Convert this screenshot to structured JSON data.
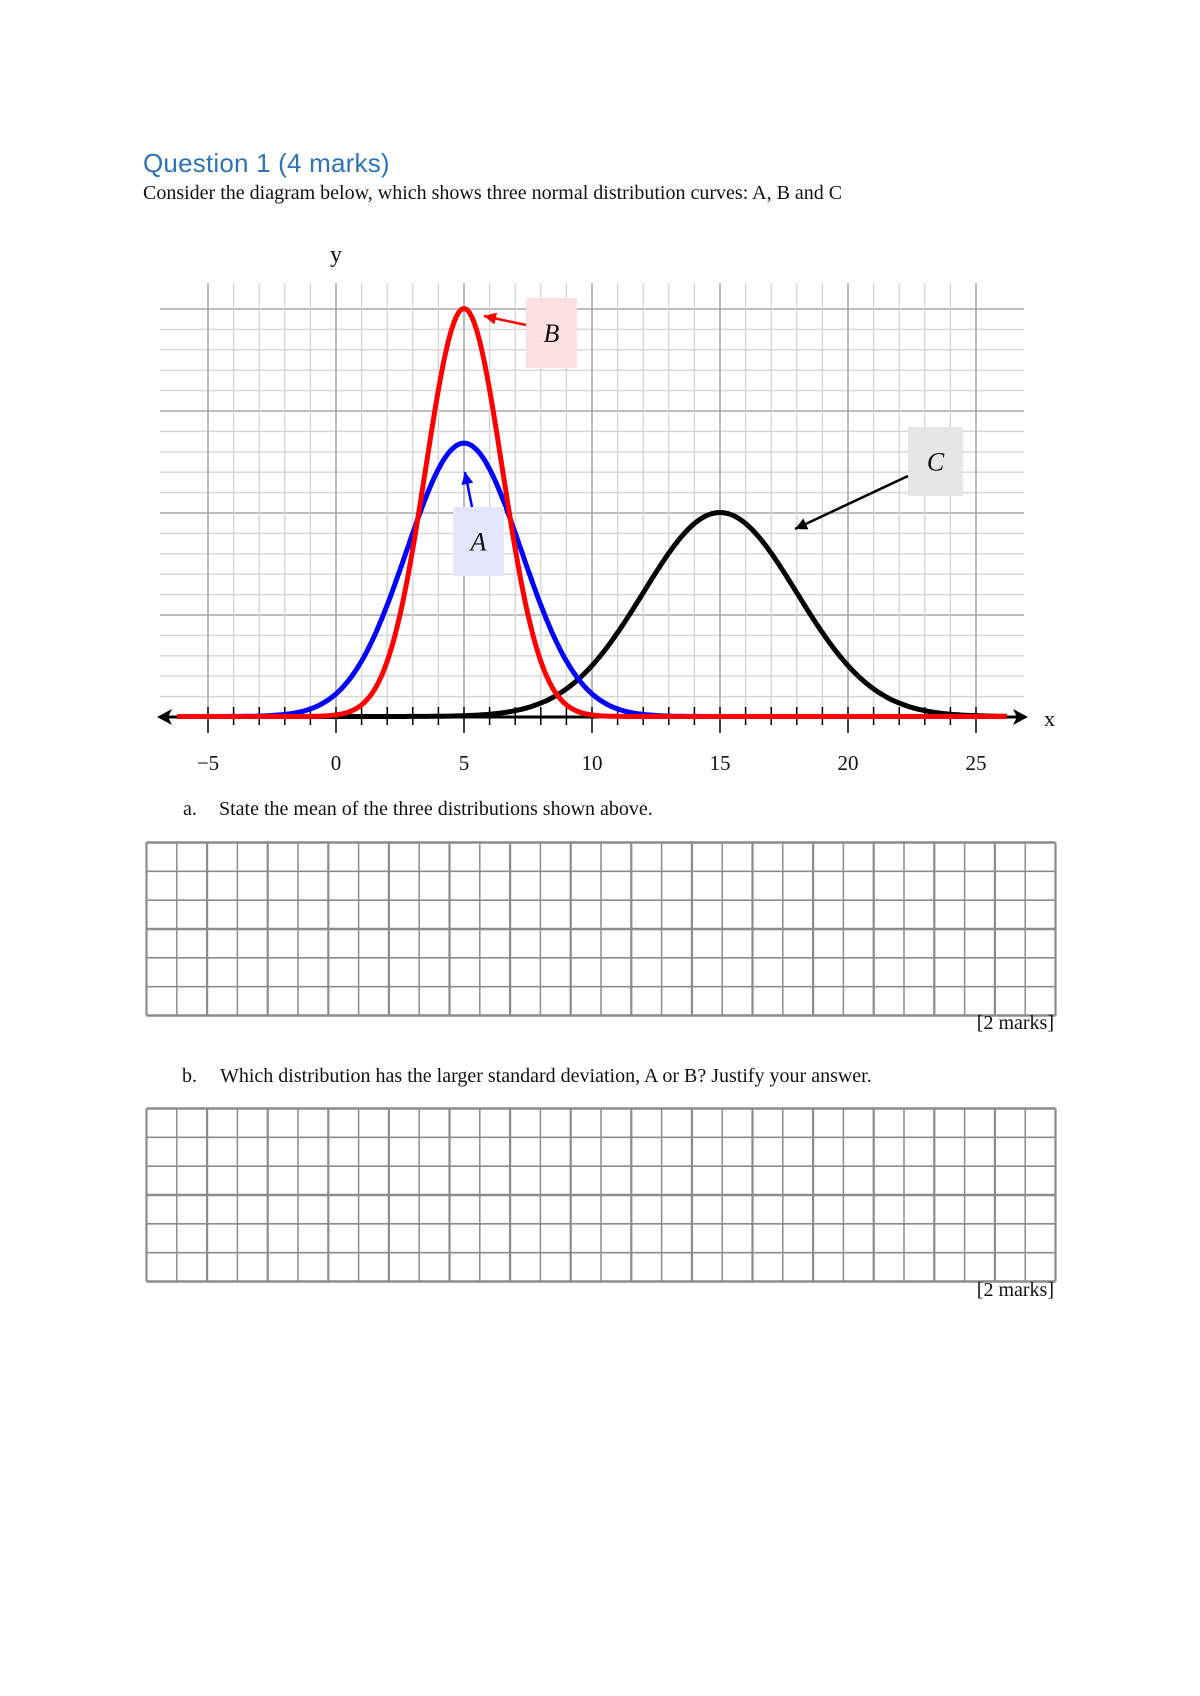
{
  "question": {
    "title": "Question 1 (4 marks)",
    "intro": "Consider the diagram below, which shows three normal distribution curves: A, B and C"
  },
  "parts": [
    {
      "label": "a.",
      "text": "State the mean of the three distributions shown above.",
      "marks": "[2 marks]"
    },
    {
      "label": "b.",
      "text": "Which distribution has the larger standard deviation, A or B? Justify your answer.",
      "marks": "[2 marks]"
    }
  ],
  "answer_grid": {
    "columns": 30,
    "rows": 6,
    "line_color": "#8c8c8c"
  },
  "chart_data": {
    "type": "line",
    "title": "",
    "xlabel": "x",
    "ylabel": "y",
    "xlim": [
      -6.5,
      26.5
    ],
    "x_ticks": [
      -5,
      0,
      5,
      10,
      15,
      20,
      25
    ],
    "x_tick_labels": [
      "−5",
      "0",
      "5",
      "10",
      "15",
      "20",
      "25"
    ],
    "minor_tick_step": 1,
    "grid": true,
    "y_grid_divisions": 20,
    "y_axis_label_position_x": 0,
    "series": [
      {
        "name": "A",
        "mean": 5,
        "sd": 2.24,
        "peak_grid_units": 13.4,
        "color": "#0000ff",
        "label_bg": "#e3e6fa"
      },
      {
        "name": "B",
        "mean": 5,
        "sd": 1.5,
        "peak_grid_units": 20,
        "color": "#ff0000",
        "label_bg": "#fde0e2"
      },
      {
        "name": "C",
        "mean": 15,
        "sd": 3,
        "peak_grid_units": 10,
        "color": "#000000",
        "label_bg": "#e6e6e6"
      }
    ],
    "annotations": [
      {
        "text": "A",
        "target_series": "A"
      },
      {
        "text": "B",
        "target_series": "B"
      },
      {
        "text": "C",
        "target_series": "C"
      }
    ]
  }
}
